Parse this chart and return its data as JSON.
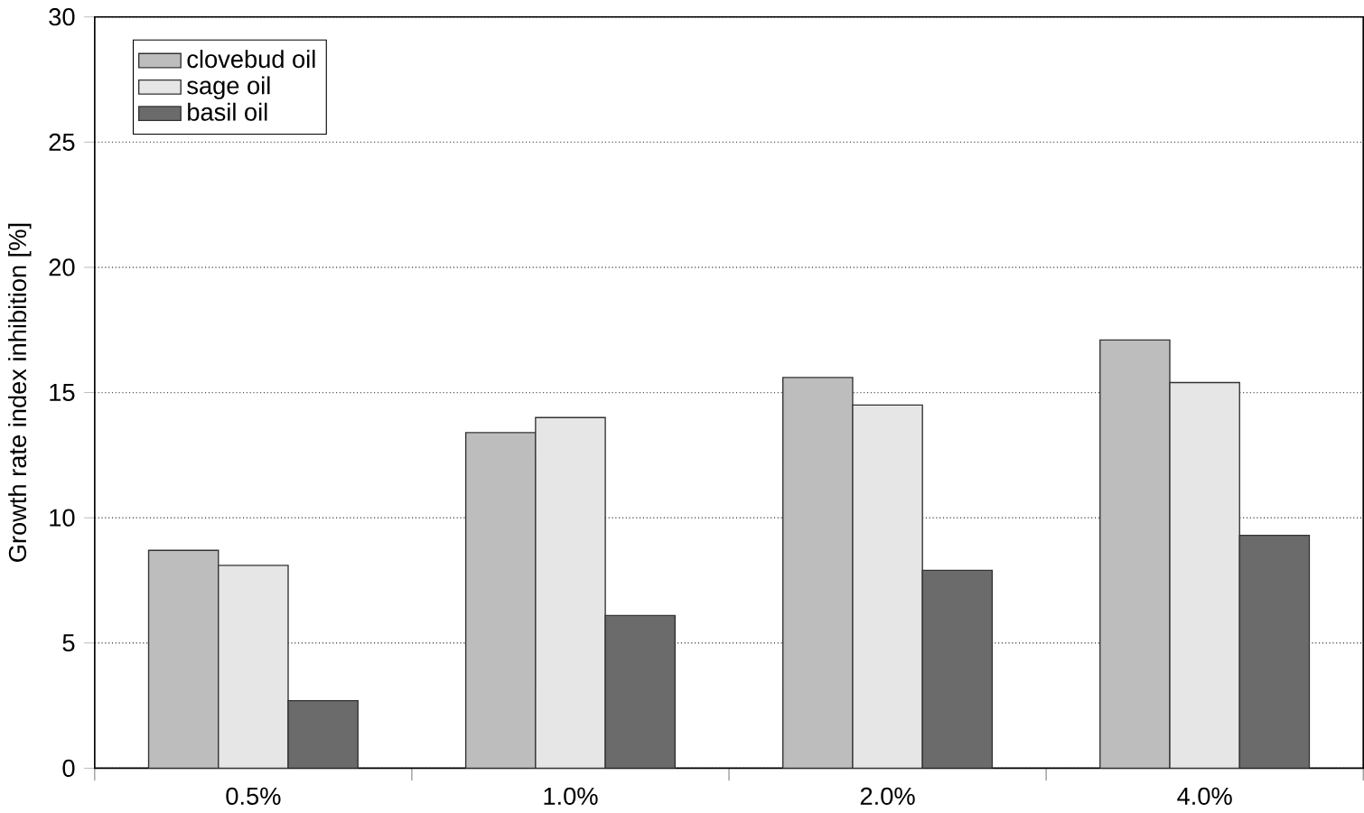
{
  "chart_data": {
    "type": "bar",
    "ylabel": "Growth rate index inhibition [%]",
    "categories": [
      "0.5%",
      "1.0%",
      "2.0%",
      "4.0%"
    ],
    "series": [
      {
        "name": "clovebud oil",
        "color": "#bdbdbd",
        "values": [
          8.7,
          13.4,
          15.6,
          17.1
        ]
      },
      {
        "name": "sage oil",
        "color": "#e6e6e6",
        "values": [
          8.1,
          14.0,
          14.5,
          15.4
        ]
      },
      {
        "name": "basil oil",
        "color": "#6b6b6b",
        "values": [
          2.7,
          6.1,
          7.9,
          9.3
        ]
      }
    ],
    "ylim": [
      0,
      30
    ],
    "yticks": [
      0,
      5,
      10,
      15,
      20,
      25,
      30
    ],
    "grid": "y",
    "legend": "top left"
  }
}
